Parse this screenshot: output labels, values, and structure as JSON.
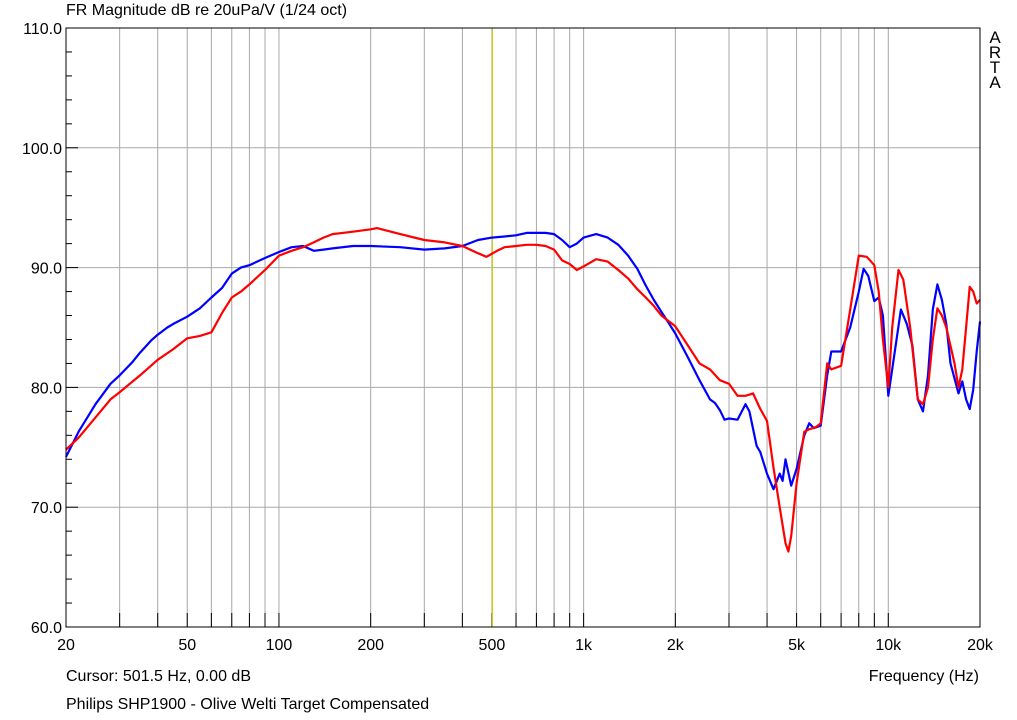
{
  "chart_data": {
    "type": "line",
    "title": "FR Magnitude dB re 20uPa/V (1/24 oct)",
    "xlabel": "Frequency (Hz)",
    "ylabel": "",
    "x_scale": "log",
    "xlim": [
      20,
      20000
    ],
    "ylim": [
      60,
      110
    ],
    "grid": true,
    "x_tick_labels": [
      {
        "value": 20,
        "label": "20"
      },
      {
        "value": 50,
        "label": "50"
      },
      {
        "value": 100,
        "label": "100"
      },
      {
        "value": 200,
        "label": "200"
      },
      {
        "value": 500,
        "label": "500"
      },
      {
        "value": 1000,
        "label": "1k"
      },
      {
        "value": 2000,
        "label": "2k"
      },
      {
        "value": 5000,
        "label": "5k"
      },
      {
        "value": 10000,
        "label": "10k"
      },
      {
        "value": 20000,
        "label": "20k"
      }
    ],
    "y_tick_labels": [
      {
        "value": 60,
        "label": "60.0"
      },
      {
        "value": 70,
        "label": "70.0"
      },
      {
        "value": 80,
        "label": "80.0"
      },
      {
        "value": 90,
        "label": "90.0"
      },
      {
        "value": 100,
        "label": "100.0"
      },
      {
        "value": 110,
        "label": "110.0"
      }
    ],
    "cursor": {
      "frequency": 501.5,
      "color": "#c8c800"
    },
    "series": [
      {
        "color": "#0000ff",
        "points": [
          [
            20,
            74.2
          ],
          [
            22,
            76.3
          ],
          [
            25,
            78.6
          ],
          [
            28,
            80.3
          ],
          [
            30,
            81.0
          ],
          [
            33,
            82.1
          ],
          [
            35,
            82.9
          ],
          [
            38,
            83.9
          ],
          [
            40,
            84.4
          ],
          [
            43,
            85.0
          ],
          [
            45,
            85.3
          ],
          [
            50,
            85.9
          ],
          [
            55,
            86.6
          ],
          [
            60,
            87.5
          ],
          [
            65,
            88.3
          ],
          [
            70,
            89.5
          ],
          [
            75,
            90.0
          ],
          [
            80,
            90.2
          ],
          [
            90,
            90.8
          ],
          [
            100,
            91.3
          ],
          [
            110,
            91.7
          ],
          [
            120,
            91.8
          ],
          [
            130,
            91.4
          ],
          [
            140,
            91.5
          ],
          [
            150,
            91.6
          ],
          [
            175,
            91.8
          ],
          [
            200,
            91.8
          ],
          [
            250,
            91.7
          ],
          [
            300,
            91.5
          ],
          [
            350,
            91.6
          ],
          [
            400,
            91.8
          ],
          [
            450,
            92.3
          ],
          [
            500,
            92.5
          ],
          [
            550,
            92.6
          ],
          [
            600,
            92.7
          ],
          [
            650,
            92.9
          ],
          [
            700,
            92.9
          ],
          [
            750,
            92.9
          ],
          [
            800,
            92.8
          ],
          [
            850,
            92.3
          ],
          [
            900,
            91.7
          ],
          [
            950,
            92.0
          ],
          [
            1000,
            92.5
          ],
          [
            1100,
            92.8
          ],
          [
            1200,
            92.5
          ],
          [
            1300,
            91.9
          ],
          [
            1400,
            91.0
          ],
          [
            1500,
            89.9
          ],
          [
            1600,
            88.5
          ],
          [
            1700,
            87.3
          ],
          [
            1800,
            86.3
          ],
          [
            1900,
            85.4
          ],
          [
            2000,
            84.5
          ],
          [
            2200,
            82.5
          ],
          [
            2400,
            80.6
          ],
          [
            2600,
            79.0
          ],
          [
            2700,
            78.7
          ],
          [
            2800,
            78.1
          ],
          [
            2900,
            77.3
          ],
          [
            3000,
            77.4
          ],
          [
            3200,
            77.3
          ],
          [
            3400,
            78.6
          ],
          [
            3500,
            78.0
          ],
          [
            3700,
            75.1
          ],
          [
            3800,
            74.6
          ],
          [
            4000,
            72.8
          ],
          [
            4200,
            71.5
          ],
          [
            4400,
            72.8
          ],
          [
            4500,
            72.2
          ],
          [
            4600,
            74.0
          ],
          [
            4800,
            71.8
          ],
          [
            5000,
            73.2
          ],
          [
            5300,
            76.0
          ],
          [
            5500,
            77.0
          ],
          [
            5700,
            76.6
          ],
          [
            6000,
            76.8
          ],
          [
            6300,
            81.0
          ],
          [
            6500,
            83.0
          ],
          [
            7000,
            83.0
          ],
          [
            7500,
            85.0
          ],
          [
            8000,
            88.0
          ],
          [
            8300,
            89.9
          ],
          [
            8600,
            89.3
          ],
          [
            9000,
            87.2
          ],
          [
            9300,
            87.5
          ],
          [
            9600,
            86.0
          ],
          [
            10000,
            79.3
          ],
          [
            10300,
            81.5
          ],
          [
            11000,
            86.5
          ],
          [
            11500,
            85.3
          ],
          [
            12000,
            83.5
          ],
          [
            12500,
            79.0
          ],
          [
            13000,
            78.0
          ],
          [
            13500,
            81.0
          ],
          [
            14000,
            86.5
          ],
          [
            14500,
            88.6
          ],
          [
            15000,
            87.3
          ],
          [
            15500,
            85.3
          ],
          [
            16000,
            82.0
          ],
          [
            17000,
            79.5
          ],
          [
            17500,
            80.5
          ],
          [
            18000,
            79.0
          ],
          [
            18500,
            78.2
          ],
          [
            19000,
            79.8
          ],
          [
            19500,
            83.0
          ],
          [
            20000,
            85.5
          ]
        ]
      },
      {
        "color": "#ff0000",
        "points": [
          [
            20,
            74.8
          ],
          [
            22,
            75.8
          ],
          [
            25,
            77.5
          ],
          [
            28,
            79.0
          ],
          [
            30,
            79.6
          ],
          [
            35,
            81.0
          ],
          [
            40,
            82.3
          ],
          [
            45,
            83.2
          ],
          [
            50,
            84.1
          ],
          [
            55,
            84.3
          ],
          [
            60,
            84.6
          ],
          [
            65,
            86.2
          ],
          [
            70,
            87.5
          ],
          [
            75,
            88.0
          ],
          [
            80,
            88.6
          ],
          [
            90,
            89.8
          ],
          [
            100,
            91.0
          ],
          [
            110,
            91.4
          ],
          [
            120,
            91.7
          ],
          [
            130,
            92.1
          ],
          [
            140,
            92.5
          ],
          [
            150,
            92.8
          ],
          [
            175,
            93.0
          ],
          [
            200,
            93.2
          ],
          [
            210,
            93.3
          ],
          [
            250,
            92.8
          ],
          [
            300,
            92.3
          ],
          [
            350,
            92.1
          ],
          [
            400,
            91.8
          ],
          [
            450,
            91.2
          ],
          [
            480,
            90.9
          ],
          [
            520,
            91.4
          ],
          [
            550,
            91.7
          ],
          [
            600,
            91.8
          ],
          [
            650,
            91.9
          ],
          [
            700,
            91.9
          ],
          [
            750,
            91.8
          ],
          [
            800,
            91.5
          ],
          [
            850,
            90.6
          ],
          [
            900,
            90.3
          ],
          [
            950,
            89.8
          ],
          [
            1000,
            90.1
          ],
          [
            1100,
            90.7
          ],
          [
            1200,
            90.5
          ],
          [
            1300,
            89.8
          ],
          [
            1400,
            89.1
          ],
          [
            1500,
            88.2
          ],
          [
            1600,
            87.5
          ],
          [
            1700,
            86.8
          ],
          [
            1800,
            86.0
          ],
          [
            2000,
            85.1
          ],
          [
            2200,
            83.5
          ],
          [
            2400,
            82.0
          ],
          [
            2600,
            81.5
          ],
          [
            2800,
            80.6
          ],
          [
            3000,
            80.3
          ],
          [
            3200,
            79.3
          ],
          [
            3400,
            79.3
          ],
          [
            3600,
            79.5
          ],
          [
            3800,
            78.2
          ],
          [
            4000,
            77.2
          ],
          [
            4200,
            73.3
          ],
          [
            4400,
            70.0
          ],
          [
            4600,
            67.0
          ],
          [
            4700,
            66.3
          ],
          [
            4800,
            67.6
          ],
          [
            5000,
            72.0
          ],
          [
            5300,
            76.3
          ],
          [
            5500,
            76.5
          ],
          [
            5800,
            76.7
          ],
          [
            6000,
            77.0
          ],
          [
            6300,
            82.0
          ],
          [
            6500,
            81.5
          ],
          [
            7000,
            81.8
          ],
          [
            7500,
            86.5
          ],
          [
            8000,
            91.0
          ],
          [
            8500,
            90.9
          ],
          [
            9000,
            90.2
          ],
          [
            9300,
            88.0
          ],
          [
            9600,
            84.0
          ],
          [
            10000,
            80.0
          ],
          [
            10300,
            85.0
          ],
          [
            10800,
            89.8
          ],
          [
            11200,
            89.0
          ],
          [
            11800,
            85.0
          ],
          [
            12500,
            79.0
          ],
          [
            13000,
            78.6
          ],
          [
            13500,
            80.0
          ],
          [
            14000,
            84.0
          ],
          [
            14500,
            86.6
          ],
          [
            15000,
            86.0
          ],
          [
            15500,
            85.0
          ],
          [
            16500,
            82.0
          ],
          [
            17000,
            80.0
          ],
          [
            17500,
            81.5
          ],
          [
            18000,
            85.0
          ],
          [
            18500,
            88.4
          ],
          [
            19000,
            88.0
          ],
          [
            19500,
            87.0
          ],
          [
            20000,
            87.3
          ]
        ]
      }
    ]
  },
  "brand": [
    "A",
    "R",
    "T",
    "A"
  ],
  "footer": {
    "cursor_readout": "Cursor: 501.5 Hz, 0.00 dB",
    "caption": "Philips SHP1900 - Olive Welti Target Compensated"
  }
}
